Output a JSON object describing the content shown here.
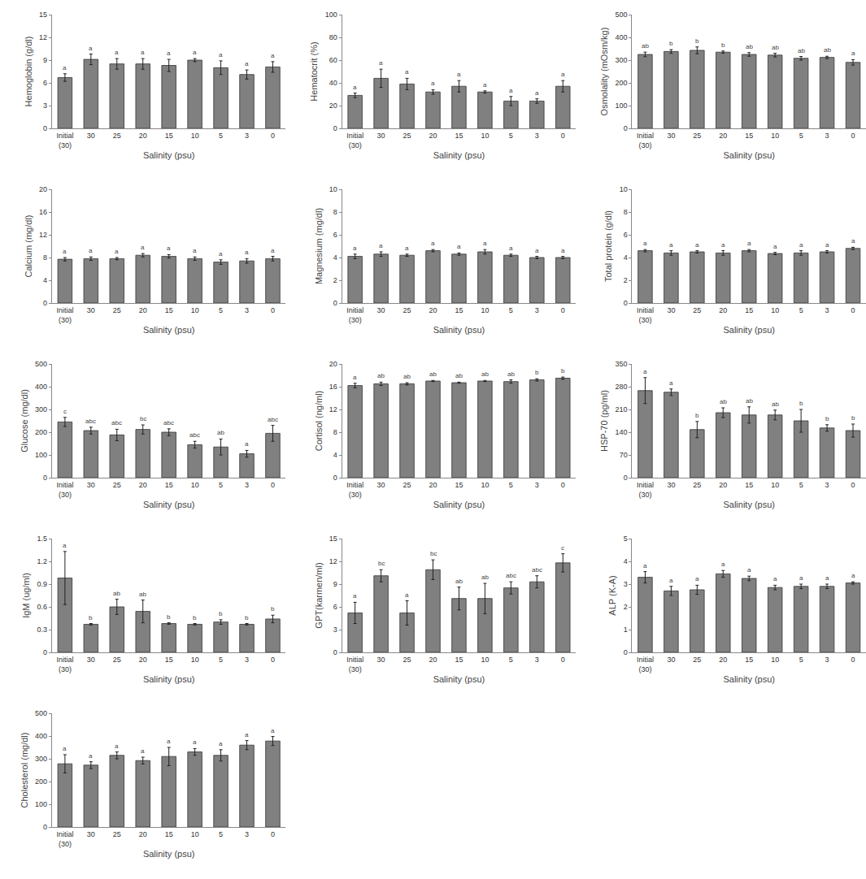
{
  "chart_data": [
    {
      "type": "bar",
      "y_label": "Hemoglobin (g/dl)",
      "x_label": "Salinity (psu)",
      "categories": [
        "Initial (30)",
        "30",
        "25",
        "20",
        "15",
        "10",
        "5",
        "3",
        "0"
      ],
      "values": [
        6.7,
        9.1,
        8.5,
        8.5,
        8.3,
        9.0,
        8.0,
        7.1,
        8.1
      ],
      "errors": [
        0.5,
        0.7,
        0.7,
        0.7,
        0.8,
        0.2,
        0.9,
        0.6,
        0.7
      ],
      "annotations": [
        "a",
        "a",
        "a",
        "a",
        "a",
        "a",
        "a",
        "a",
        "a"
      ],
      "ylim": [
        0,
        15
      ],
      "yticks": [
        0,
        3,
        6,
        9,
        12,
        15
      ],
      "color": "#808080"
    },
    {
      "type": "bar",
      "y_label": "Hematocrit (%)",
      "x_label": "Salinity (psu)",
      "categories": [
        "Initial (30)",
        "30",
        "25",
        "20",
        "15",
        "10",
        "5",
        "3",
        "0"
      ],
      "values": [
        29,
        44,
        39,
        32,
        37,
        32,
        24,
        24,
        37
      ],
      "errors": [
        2,
        8,
        5,
        2,
        5,
        1,
        4,
        2,
        5
      ],
      "annotations": [
        "a",
        "a",
        "a",
        "a",
        "a",
        "a",
        "a",
        "a",
        "a"
      ],
      "ylim": [
        0,
        100
      ],
      "yticks": [
        0,
        20,
        40,
        60,
        80,
        100
      ],
      "color": "#808080"
    },
    {
      "type": "bar",
      "y_label": "Osmolality (mOsm/kg)",
      "x_label": "Salinity (psu)",
      "categories": [
        "Initial (30)",
        "30",
        "25",
        "20",
        "15",
        "10",
        "5",
        "3",
        "0"
      ],
      "values": [
        325,
        338,
        343,
        335,
        325,
        322,
        308,
        312,
        290
      ],
      "errors": [
        10,
        8,
        15,
        5,
        8,
        8,
        8,
        5,
        12
      ],
      "annotations": [
        "ab",
        "b",
        "b",
        "b",
        "ab",
        "ab",
        "ab",
        "ab",
        "a"
      ],
      "ylim": [
        0,
        500
      ],
      "yticks": [
        0,
        100,
        200,
        300,
        400,
        500
      ],
      "color": "#808080"
    },
    {
      "type": "bar",
      "y_label": "Calcium (mg/dl)",
      "x_label": "Salinity (psu)",
      "categories": [
        "Initial (30)",
        "30",
        "25",
        "20",
        "15",
        "10",
        "5",
        "3",
        "0"
      ],
      "values": [
        7.7,
        7.8,
        7.8,
        8.4,
        8.2,
        7.8,
        7.2,
        7.4,
        7.8
      ],
      "errors": [
        0.3,
        0.3,
        0.2,
        0.3,
        0.3,
        0.3,
        0.4,
        0.4,
        0.4
      ],
      "annotations": [
        "a",
        "a",
        "a",
        "a",
        "a",
        "a",
        "a",
        "a",
        "a"
      ],
      "ylim": [
        0,
        20
      ],
      "yticks": [
        0,
        4,
        8,
        12,
        16,
        20
      ],
      "color": "#808080"
    },
    {
      "type": "bar",
      "y_label": "Magnesium (mg/dl)",
      "x_label": "Salinity (psu)",
      "categories": [
        "Initial (30)",
        "30",
        "25",
        "20",
        "15",
        "10",
        "5",
        "3",
        "0"
      ],
      "values": [
        4.1,
        4.3,
        4.2,
        4.6,
        4.3,
        4.5,
        4.2,
        4.0,
        4.0
      ],
      "errors": [
        0.2,
        0.2,
        0.1,
        0.1,
        0.1,
        0.2,
        0.1,
        0.1,
        0.1
      ],
      "annotations": [
        "a",
        "a",
        "a",
        "a",
        "a",
        "a",
        "a",
        "a",
        "a"
      ],
      "ylim": [
        0,
        10
      ],
      "yticks": [
        0,
        2,
        4,
        6,
        8,
        10
      ],
      "color": "#808080"
    },
    {
      "type": "bar",
      "y_label": "Total protein (g/dl)",
      "x_label": "Salinity (psu)",
      "categories": [
        "Initial (30)",
        "30",
        "25",
        "20",
        "15",
        "10",
        "5",
        "3",
        "0"
      ],
      "values": [
        4.6,
        4.4,
        4.5,
        4.4,
        4.6,
        4.35,
        4.4,
        4.5,
        4.8
      ],
      "errors": [
        0.1,
        0.2,
        0.1,
        0.2,
        0.1,
        0.1,
        0.2,
        0.1,
        0.1
      ],
      "annotations": [
        "a",
        "a",
        "a",
        "a",
        "a",
        "a",
        "a",
        "a",
        "a"
      ],
      "ylim": [
        0,
        10
      ],
      "yticks": [
        0,
        2,
        4,
        6,
        8,
        10
      ],
      "color": "#808080"
    },
    {
      "type": "bar",
      "y_label": "Glucose (mg/dl)",
      "x_label": "Salinity (psu)",
      "categories": [
        "Initial (30)",
        "30",
        "25",
        "20",
        "15",
        "10",
        "5",
        "3",
        "0"
      ],
      "values": [
        245,
        207,
        188,
        212,
        200,
        145,
        135,
        105,
        195
      ],
      "errors": [
        20,
        15,
        25,
        20,
        15,
        15,
        35,
        15,
        35
      ],
      "annotations": [
        "c",
        "abc",
        "abc",
        "bc",
        "abc",
        "abc",
        "ab",
        "a",
        "abc"
      ],
      "ylim": [
        0,
        500
      ],
      "yticks": [
        0,
        100,
        200,
        300,
        400,
        500
      ],
      "color": "#808080"
    },
    {
      "type": "bar",
      "y_label": "Cortisol (ng/ml)",
      "x_label": "Salinity (psu)",
      "categories": [
        "Initial (30)",
        "30",
        "25",
        "20",
        "15",
        "10",
        "5",
        "3",
        "0"
      ],
      "values": [
        16.2,
        16.5,
        16.5,
        17.0,
        16.7,
        17.0,
        16.9,
        17.2,
        17.5
      ],
      "errors": [
        0.4,
        0.3,
        0.2,
        0.1,
        0.1,
        0.1,
        0.3,
        0.2,
        0.2
      ],
      "annotations": [
        "a",
        "ab",
        "ab",
        "ab",
        "ab",
        "ab",
        "ab",
        "b",
        "b"
      ],
      "ylim": [
        0,
        20
      ],
      "yticks": [
        0,
        4,
        8,
        12,
        16,
        20
      ],
      "color": "#808080"
    },
    {
      "type": "bar",
      "y_label": "HSP-70 (pg/ml)",
      "x_label": "Salinity (psu)",
      "categories": [
        "Initial (30)",
        "30",
        "25",
        "20",
        "15",
        "10",
        "5",
        "3",
        "0"
      ],
      "values": [
        268,
        263,
        148,
        200,
        193,
        193,
        175,
        153,
        145
      ],
      "errors": [
        40,
        10,
        25,
        15,
        25,
        15,
        35,
        10,
        20
      ],
      "annotations": [
        "a",
        "a",
        "b",
        "ab",
        "ab",
        "ab",
        "b",
        "b",
        "b"
      ],
      "ylim": [
        0,
        350
      ],
      "yticks": [
        0,
        70,
        140,
        210,
        280,
        350
      ],
      "color": "#808080"
    },
    {
      "type": "bar",
      "y_label": "IgM (ug/ml)",
      "x_label": "Salinity (psu)",
      "categories": [
        "Initial (30)",
        "30",
        "25",
        "20",
        "15",
        "10",
        "5",
        "3",
        "0"
      ],
      "values": [
        0.98,
        0.37,
        0.6,
        0.54,
        0.38,
        0.37,
        0.4,
        0.37,
        0.44
      ],
      "errors": [
        0.35,
        0.01,
        0.1,
        0.15,
        0.01,
        0.01,
        0.03,
        0.01,
        0.05
      ],
      "annotations": [
        "a",
        "b",
        "ab",
        "ab",
        "b",
        "b",
        "b",
        "b",
        "b"
      ],
      "ylim": [
        0,
        1.5
      ],
      "yticks": [
        0,
        0.3,
        0.6,
        0.9,
        1.2,
        1.5
      ],
      "color": "#808080"
    },
    {
      "type": "bar",
      "y_label": "GPT(karmen/ml)",
      "x_label": "Salinity (psu)",
      "categories": [
        "Initial (30)",
        "30",
        "25",
        "20",
        "15",
        "10",
        "5",
        "3",
        "0"
      ],
      "values": [
        5.2,
        10.1,
        5.2,
        10.9,
        7.1,
        7.1,
        8.5,
        9.3,
        11.8
      ],
      "errors": [
        1.4,
        0.8,
        1.6,
        1.3,
        1.5,
        2.0,
        0.8,
        0.8,
        1.2
      ],
      "annotations": [
        "a",
        "bc",
        "a",
        "bc",
        "ab",
        "ab",
        "abc",
        "abc",
        "c"
      ],
      "ylim": [
        0,
        15
      ],
      "yticks": [
        0,
        3,
        6,
        9,
        12,
        15
      ],
      "color": "#808080"
    },
    {
      "type": "bar",
      "y_label": "ALP (K-A)",
      "x_label": "Salinity (psu)",
      "categories": [
        "Initial (30)",
        "30",
        "25",
        "20",
        "15",
        "10",
        "5",
        "3",
        "0"
      ],
      "values": [
        3.3,
        2.7,
        2.75,
        3.45,
        3.25,
        2.85,
        2.9,
        2.9,
        3.05
      ],
      "errors": [
        0.25,
        0.2,
        0.2,
        0.15,
        0.1,
        0.1,
        0.1,
        0.1,
        0.05
      ],
      "annotations": [
        "a",
        "a",
        "a",
        "a",
        "a",
        "a",
        "a",
        "a",
        "a"
      ],
      "ylim": [
        0,
        5
      ],
      "yticks": [
        0,
        1,
        2,
        3,
        4,
        5
      ],
      "color": "#808080"
    },
    {
      "type": "bar",
      "y_label": "Cholesterol (mg/dl)",
      "x_label": "Salinity (psu)",
      "categories": [
        "Initial (30)",
        "30",
        "25",
        "20",
        "15",
        "10",
        "5",
        "3",
        "0"
      ],
      "values": [
        278,
        272,
        315,
        292,
        310,
        330,
        315,
        360,
        378
      ],
      "errors": [
        40,
        15,
        15,
        15,
        40,
        15,
        25,
        20,
        20
      ],
      "annotations": [
        "a",
        "a",
        "a",
        "a",
        "a",
        "a",
        "a",
        "a",
        "a"
      ],
      "ylim": [
        0,
        500
      ],
      "yticks": [
        0,
        100,
        200,
        300,
        400,
        500
      ],
      "color": "#808080"
    }
  ]
}
